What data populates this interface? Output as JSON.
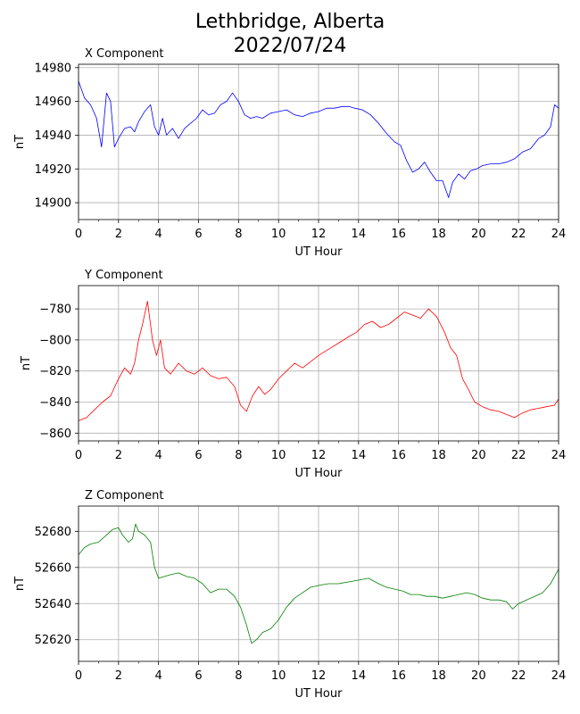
{
  "title_line1": "Lethbridge, Alberta",
  "title_line2": "2022/07/24",
  "chart_data": [
    {
      "type": "line",
      "title": "X Component",
      "xlabel": "UT Hour",
      "ylabel": "nT",
      "xlim": [
        0,
        24
      ],
      "ylim": [
        14890,
        14982
      ],
      "xticks": [
        0,
        2,
        4,
        6,
        8,
        10,
        12,
        14,
        16,
        18,
        20,
        22,
        24
      ],
      "yticks": [
        14900,
        14920,
        14940,
        14960,
        14980
      ],
      "grid": true,
      "color": "#0000ff",
      "x": [
        0,
        0.3,
        0.6,
        0.9,
        1.15,
        1.4,
        1.6,
        1.8,
        2.0,
        2.3,
        2.6,
        2.8,
        3.0,
        3.3,
        3.6,
        3.8,
        4.0,
        4.2,
        4.4,
        4.7,
        5.0,
        5.3,
        5.6,
        5.9,
        6.2,
        6.5,
        6.8,
        7.1,
        7.4,
        7.7,
        8.0,
        8.3,
        8.6,
        8.9,
        9.2,
        9.6,
        10.0,
        10.4,
        10.8,
        11.2,
        11.6,
        12.0,
        12.4,
        12.8,
        13.2,
        13.5,
        13.8,
        14.2,
        14.6,
        15.0,
        15.4,
        15.8,
        16.1,
        16.4,
        16.7,
        17.0,
        17.3,
        17.6,
        17.9,
        18.2,
        18.5,
        18.7,
        19.0,
        19.3,
        19.6,
        19.9,
        20.2,
        20.6,
        21.0,
        21.4,
        21.8,
        22.2,
        22.6,
        23.0,
        23.3,
        23.6,
        23.8,
        24.0
      ],
      "y": [
        14972,
        14962,
        14958,
        14950,
        14933,
        14965,
        14960,
        14933,
        14938,
        14944,
        14945,
        14942,
        14948,
        14954,
        14958,
        14945,
        14940,
        14950,
        14940,
        14944,
        14938,
        14944,
        14947,
        14950,
        14955,
        14952,
        14953,
        14958,
        14960,
        14965,
        14960,
        14952,
        14950,
        14951,
        14950,
        14953,
        14954,
        14955,
        14952,
        14951,
        14953,
        14954,
        14956,
        14956,
        14957,
        14957,
        14956,
        14955,
        14952,
        14947,
        14941,
        14936,
        14934,
        14925,
        14918,
        14920,
        14924,
        14918,
        14913,
        14913,
        14903,
        14912,
        14917,
        14914,
        14919,
        14920,
        14922,
        14923,
        14923,
        14924,
        14926,
        14930,
        14932,
        14938,
        14940,
        14945,
        14958,
        14956
      ]
    },
    {
      "type": "line",
      "title": "Y Component",
      "xlabel": "UT Hour",
      "ylabel": "nT",
      "xlim": [
        0,
        24
      ],
      "ylim": [
        -865,
        -765
      ],
      "xticks": [
        0,
        2,
        4,
        6,
        8,
        10,
        12,
        14,
        16,
        18,
        20,
        22,
        24
      ],
      "yticks": [
        -860,
        -840,
        -820,
        -800,
        -780
      ],
      "grid": true,
      "color": "#ff0000",
      "x": [
        0,
        0.4,
        0.8,
        1.2,
        1.6,
        2.0,
        2.3,
        2.6,
        2.8,
        3.0,
        3.2,
        3.45,
        3.7,
        3.9,
        4.1,
        4.3,
        4.6,
        5.0,
        5.4,
        5.8,
        6.2,
        6.6,
        7.0,
        7.4,
        7.8,
        8.1,
        8.4,
        8.7,
        9.0,
        9.3,
        9.6,
        10.0,
        10.4,
        10.8,
        11.2,
        11.6,
        12.0,
        12.5,
        13.0,
        13.5,
        13.9,
        14.3,
        14.7,
        15.1,
        15.5,
        15.9,
        16.3,
        16.7,
        17.1,
        17.5,
        17.9,
        18.3,
        18.6,
        18.9,
        19.2,
        19.5,
        19.8,
        20.2,
        20.6,
        21.0,
        21.4,
        21.8,
        22.2,
        22.6,
        23.0,
        23.4,
        23.8,
        24.0
      ],
      "y": [
        -852,
        -850,
        -845,
        -840,
        -836,
        -825,
        -818,
        -822,
        -815,
        -800,
        -790,
        -775,
        -800,
        -810,
        -800,
        -818,
        -822,
        -815,
        -820,
        -822,
        -818,
        -823,
        -825,
        -824,
        -830,
        -842,
        -846,
        -836,
        -830,
        -835,
        -832,
        -825,
        -820,
        -815,
        -818,
        -814,
        -810,
        -806,
        -802,
        -798,
        -795,
        -790,
        -788,
        -792,
        -790,
        -786,
        -782,
        -784,
        -786,
        -780,
        -785,
        -795,
        -805,
        -810,
        -825,
        -832,
        -840,
        -843,
        -845,
        -846,
        -848,
        -850,
        -847,
        -845,
        -844,
        -843,
        -842,
        -838
      ]
    },
    {
      "type": "line",
      "title": "Z Component",
      "xlabel": "UT Hour",
      "ylabel": "nT",
      "xlim": [
        0,
        24
      ],
      "ylim": [
        52608,
        52694
      ],
      "xticks": [
        0,
        2,
        4,
        6,
        8,
        10,
        12,
        14,
        16,
        18,
        20,
        22,
        24
      ],
      "yticks": [
        52620,
        52640,
        52660,
        52680
      ],
      "grid": true,
      "color": "#008000",
      "x": [
        0,
        0.3,
        0.6,
        1.0,
        1.4,
        1.7,
        2.0,
        2.2,
        2.5,
        2.7,
        2.85,
        3.0,
        3.3,
        3.6,
        3.8,
        4.0,
        4.3,
        4.6,
        5.0,
        5.4,
        5.8,
        6.2,
        6.6,
        7.0,
        7.4,
        7.8,
        8.1,
        8.4,
        8.65,
        8.9,
        9.2,
        9.6,
        10.0,
        10.4,
        10.8,
        11.2,
        11.6,
        12.0,
        12.5,
        13.0,
        13.5,
        14.0,
        14.5,
        15.0,
        15.4,
        15.8,
        16.2,
        16.6,
        17.0,
        17.4,
        17.8,
        18.2,
        18.6,
        19.0,
        19.4,
        19.8,
        20.2,
        20.6,
        21.0,
        21.4,
        21.7,
        22.0,
        22.4,
        22.8,
        23.2,
        23.6,
        24.0
      ],
      "y": [
        52667,
        52671,
        52673,
        52674,
        52678,
        52681,
        52682,
        52678,
        52674,
        52676,
        52684,
        52680,
        52678,
        52674,
        52660,
        52654,
        52655,
        52656,
        52657,
        52655,
        52654,
        52651,
        52646,
        52648,
        52648,
        52644,
        52638,
        52628,
        52618,
        52620,
        52624,
        52626,
        52631,
        52638,
        52643,
        52646,
        52649,
        52650,
        52651,
        52651,
        52652,
        52653,
        52654,
        52651,
        52649,
        52648,
        52647,
        52645,
        52645,
        52644,
        52644,
        52643,
        52644,
        52645,
        52646,
        52645,
        52643,
        52642,
        52642,
        52641,
        52637,
        52640,
        52642,
        52644,
        52646,
        52651,
        52659
      ]
    }
  ]
}
